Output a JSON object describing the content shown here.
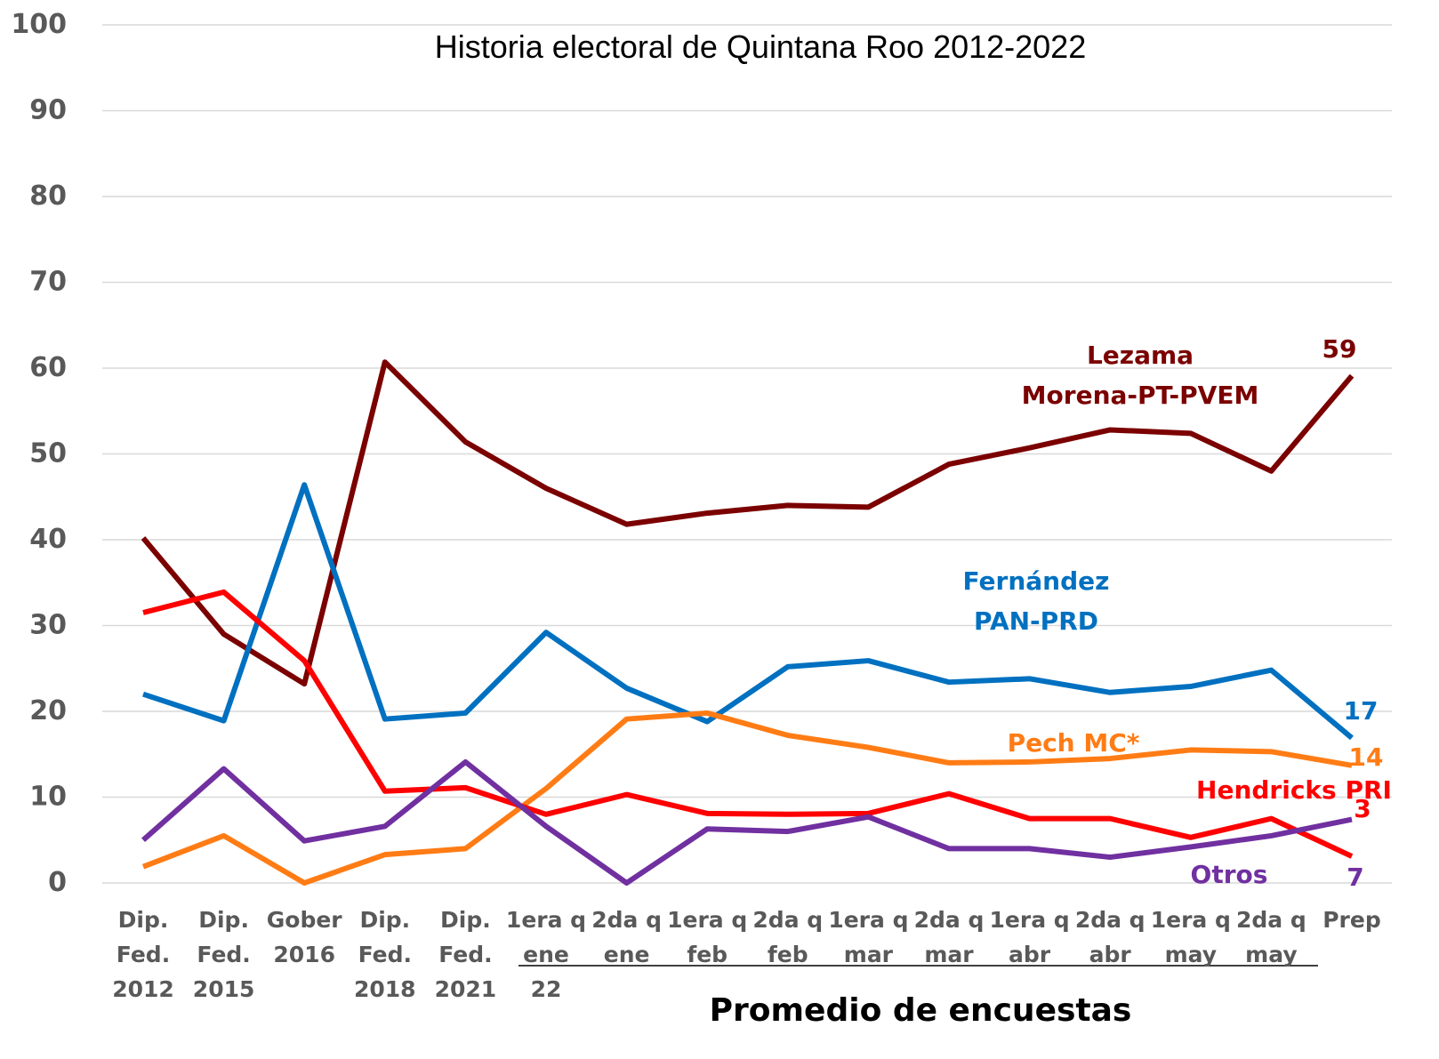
{
  "chart_data": {
    "type": "line",
    "title": "Historia electoral de Quintana Roo 2012-2022",
    "xlabel": "Promedio de encuestas",
    "categories": [
      "Dip.\nFed.\n2012",
      "Dip.\nFed.\n2015",
      "Gober\n2016",
      "Dip.\nFed.\n2018",
      "Dip.\nFed.\n2021",
      "1era q\nene\n22",
      "2da q\nene",
      "1era q\nfeb",
      "2da q\nfeb",
      "1era q\nmar",
      "2da q\nmar",
      "1era q\nabr",
      "2da q\nabr",
      "1era q\nmay",
      "2da q\nmay",
      "Prep"
    ],
    "ylim": [
      0,
      100
    ],
    "yticks": [
      0,
      10,
      20,
      30,
      40,
      50,
      60,
      70,
      80,
      90,
      100
    ],
    "grid": true,
    "series": [
      {
        "name": "Lezama\nMorena-PT-PVEM",
        "color": "#7b0000",
        "values": [
          40.2,
          29,
          23.2,
          60.7,
          51.4,
          46,
          41.8,
          43.1,
          44,
          43.8,
          48.8,
          50.7,
          52.8,
          52.4,
          48,
          59.1
        ],
        "value_labels": [
          null,
          null,
          null,
          null,
          null,
          null,
          null,
          null,
          null,
          null,
          null,
          null,
          null,
          null,
          null,
          "59"
        ]
      },
      {
        "name": "Fernández\nPAN-PRD",
        "color": "#0070c0",
        "values": [
          22,
          18.9,
          46.4,
          19.1,
          19.8,
          29.2,
          22.7,
          18.8,
          25.2,
          25.9,
          23.4,
          23.8,
          22.2,
          22.9,
          24.8,
          16.9
        ],
        "value_labels": [
          null,
          null,
          null,
          null,
          null,
          null,
          null,
          null,
          null,
          null,
          null,
          null,
          null,
          null,
          null,
          "17"
        ]
      },
      {
        "name": "Pech MC*",
        "color": "#ff7c15",
        "values": [
          1.9,
          5.5,
          0,
          3.3,
          4,
          11,
          19.1,
          19.8,
          17.2,
          15.8,
          14,
          14.1,
          14.5,
          15.5,
          15.3,
          13.7
        ],
        "value_labels": [
          null,
          null,
          null,
          null,
          null,
          null,
          null,
          null,
          null,
          null,
          null,
          null,
          null,
          null,
          null,
          "14"
        ]
      },
      {
        "name": "Hendricks PRI",
        "color": "#ff0000",
        "values": [
          31.5,
          33.9,
          25.9,
          10.7,
          11.1,
          8,
          10.3,
          8.1,
          8,
          8.1,
          10.4,
          7.5,
          7.5,
          5.3,
          7.5,
          3.1
        ],
        "value_labels": [
          null,
          null,
          null,
          null,
          null,
          null,
          null,
          null,
          null,
          null,
          null,
          null,
          null,
          null,
          null,
          "3"
        ]
      },
      {
        "name": "Otros",
        "color": "#7030a0",
        "values": [
          5,
          13.3,
          4.9,
          6.6,
          14.1,
          6.6,
          0,
          6.3,
          6,
          7.7,
          4,
          4,
          3,
          4.2,
          5.5,
          7.4
        ],
        "value_labels": [
          null,
          null,
          null,
          null,
          null,
          null,
          null,
          null,
          null,
          null,
          null,
          null,
          null,
          null,
          null,
          "7"
        ]
      }
    ]
  }
}
